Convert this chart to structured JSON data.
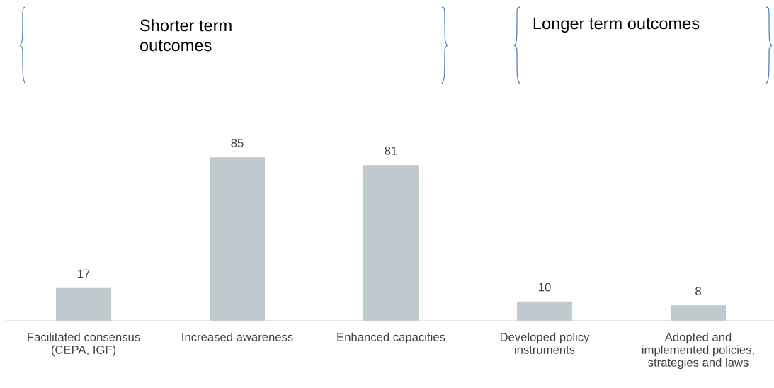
{
  "chart_data": {
    "type": "bar",
    "categories": [
      "Facilitated consensus\n(CEPA, IGF)",
      "Increased awareness",
      "Enhanced capacities",
      "Developed policy\ninstruments",
      "Adopted and\nimplemented policies,\nstrategies and laws"
    ],
    "values": [
      17,
      85,
      81,
      10,
      8
    ],
    "color": "#bfc9ce",
    "data_labels": true,
    "grid": false,
    "legend": false,
    "annotations": [
      "Shorter term\noutcomes",
      "Longer term outcomes"
    ]
  }
}
